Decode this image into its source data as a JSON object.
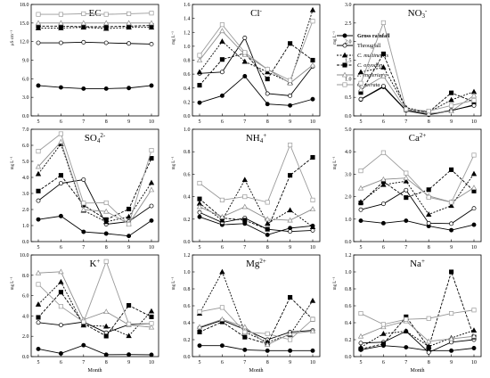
{
  "styles": [
    {
      "key": "gr",
      "color": "#000000",
      "dash": "",
      "marker": "circle",
      "fill": "#000000",
      "width": 0.9
    },
    {
      "key": "tf",
      "color": "#000000",
      "dash": "",
      "marker": "circle",
      "fill": "#ffffff",
      "width": 0.9
    },
    {
      "key": "cm",
      "color": "#000000",
      "dash": "2,1.5",
      "marker": "triangle",
      "fill": "#000000",
      "width": 0.9
    },
    {
      "key": "co",
      "color": "#000000",
      "dash": "3,1.5",
      "marker": "square",
      "fill": "#000000",
      "width": 0.9
    },
    {
      "key": "fe",
      "color": "#8c8c8c",
      "dash": "",
      "marker": "triangle",
      "fill": "#ffffff",
      "width": 0.9
    },
    {
      "key": "qs",
      "color": "#9a9a9a",
      "dash": "",
      "marker": "square",
      "fill": "#ffffff",
      "width": 0.9
    }
  ],
  "legend": [
    "Gross rainfall",
    "Througfall",
    "C. multinervis",
    "C. oxyodon",
    "F. engleriana",
    "Q. serrata"
  ],
  "chart_data": [
    {
      "type": "line",
      "title": "EC",
      "sup": "",
      "ylabel": "μS cm⁻¹",
      "ylim": [
        0,
        18
      ],
      "yticks": [
        "0.0",
        "3.0",
        "6.0",
        "9.0",
        "12.0",
        "15.0",
        "18.0"
      ],
      "xlabel": "",
      "x": [
        5,
        6,
        7,
        8,
        9,
        10
      ],
      "series": [
        {
          "values": [
            4.9,
            4.6,
            4.4,
            4.4,
            4.5,
            4.9
          ]
        },
        {
          "values": [
            11.8,
            11.8,
            11.9,
            11.8,
            11.7,
            11.6
          ]
        },
        {
          "values": [
            14.2,
            14.2,
            14.3,
            14.1,
            14.3,
            14.3
          ]
        },
        {
          "values": [
            14.5,
            14.5,
            14.4,
            14.4,
            14.5,
            14.6
          ]
        },
        {
          "values": [
            15.0,
            15.0,
            15.0,
            15.0,
            15.0,
            15.0
          ]
        },
        {
          "values": [
            16.4,
            16.4,
            16.5,
            16.4,
            16.5,
            16.6
          ]
        }
      ]
    },
    {
      "type": "line",
      "title": "Cl",
      "sup": "-",
      "ylabel": "mg L⁻¹",
      "ylim": [
        0,
        1.6
      ],
      "yticks": [
        "0.0",
        "0.2",
        "0.4",
        "0.6",
        "0.8",
        "1.0",
        "1.2",
        "1.4",
        "1.6"
      ],
      "xlabel": "",
      "x": [
        5,
        6,
        7,
        8,
        9,
        10
      ],
      "series": [
        {
          "values": [
            0.19,
            0.29,
            0.57,
            0.17,
            0.15,
            0.24
          ]
        },
        {
          "values": [
            0.61,
            0.63,
            1.12,
            0.32,
            0.29,
            0.71
          ]
        },
        {
          "values": [
            0.63,
            1.07,
            0.78,
            0.63,
            0.48,
            1.52
          ]
        },
        {
          "values": [
            0.44,
            0.81,
            0.9,
            0.53,
            1.04,
            0.8
          ]
        },
        {
          "values": [
            0.8,
            1.22,
            0.88,
            0.67,
            0.47,
            0.73
          ]
        },
        {
          "values": [
            0.87,
            1.31,
            0.91,
            0.67,
            0.51,
            1.36
          ]
        }
      ]
    },
    {
      "type": "line",
      "title": "NO",
      "sup": "3",
      "sub": "-",
      "ylabel": "mg L⁻¹",
      "ylim": [
        0,
        3.0
      ],
      "yticks": [
        "0.0",
        "0.5",
        "1.0",
        "1.5",
        "2.0",
        "2.5",
        "3.0"
      ],
      "xlabel": "",
      "x": [
        5,
        6,
        7,
        8,
        9,
        10
      ],
      "series": [
        {
          "values": [
            0.44,
            0.78,
            0.14,
            0.03,
            0.14,
            0.3
          ]
        },
        {
          "values": [
            0.45,
            0.8,
            0.15,
            0.04,
            0.15,
            0.28
          ]
        },
        {
          "values": [
            1.18,
            1.31,
            0.22,
            0.1,
            0.43,
            0.65
          ]
        },
        {
          "values": [
            0.63,
            1.67,
            0.17,
            0.1,
            0.62,
            0.38
          ]
        },
        {
          "values": [
            0.71,
            1.07,
            0.16,
            0.06,
            0.13,
            0.55
          ]
        },
        {
          "values": [
            0.88,
            2.51,
            0.18,
            0.13,
            0.28,
            0.42
          ]
        }
      ]
    },
    {
      "type": "line",
      "title": "SO",
      "sup": "4",
      "sub": "2-",
      "ylabel": "mg L⁻¹",
      "ylim": [
        0,
        7.0
      ],
      "yticks": [
        "0.0",
        "1.0",
        "2.0",
        "3.0",
        "4.0",
        "5.0",
        "6.0",
        "7.0"
      ],
      "xlabel": "",
      "x": [
        5,
        6,
        7,
        8,
        9,
        10
      ],
      "series": [
        {
          "values": [
            1.38,
            1.59,
            0.61,
            0.5,
            0.35,
            1.31
          ]
        },
        {
          "values": [
            2.55,
            3.63,
            3.86,
            1.08,
            1.25,
            2.22
          ]
        },
        {
          "values": [
            4.22,
            6.08,
            1.94,
            1.23,
            1.55,
            3.67
          ]
        },
        {
          "values": [
            3.15,
            4.13,
            2.28,
            1.37,
            2.03,
            5.19
          ]
        },
        {
          "values": [
            4.67,
            6.22,
            1.99,
            1.88,
            1.11,
            3.23
          ]
        },
        {
          "values": [
            5.63,
            6.72,
            2.4,
            2.42,
            1.08,
            5.69
          ]
        }
      ]
    },
    {
      "type": "line",
      "title": "NH",
      "sup": "4",
      "sub": "+",
      "ylabel": "mg L⁻¹",
      "ylim": [
        0,
        1.0
      ],
      "yticks": [
        "0.0",
        "0.2",
        "0.4",
        "0.6",
        "0.8",
        "1.0"
      ],
      "xlabel": "",
      "x": [
        5,
        6,
        7,
        8,
        9,
        10
      ],
      "series": [
        {
          "values": [
            0.22,
            0.15,
            0.16,
            0.06,
            0.12,
            0.14
          ]
        },
        {
          "values": [
            0.26,
            0.17,
            0.21,
            0.11,
            0.09,
            0.1
          ]
        },
        {
          "values": [
            0.34,
            0.19,
            0.55,
            0.16,
            0.28,
            0.13
          ]
        },
        {
          "values": [
            0.38,
            0.21,
            0.19,
            0.11,
            0.59,
            0.75
          ]
        },
        {
          "values": [
            0.31,
            0.22,
            0.31,
            0.2,
            0.19,
            0.29
          ]
        },
        {
          "values": [
            0.52,
            0.37,
            0.4,
            0.35,
            0.86,
            0.37
          ]
        }
      ]
    },
    {
      "type": "line",
      "title": "Ca",
      "sup": "2+",
      "ylabel": "mg L⁻¹",
      "ylim": [
        0,
        5.0
      ],
      "yticks": [
        "0.0",
        "1.0",
        "2.0",
        "3.0",
        "4.0",
        "5.0"
      ],
      "xlabel": "",
      "x": [
        5,
        6,
        7,
        8,
        9,
        10
      ],
      "series": [
        {
          "values": [
            0.93,
            0.82,
            0.93,
            0.69,
            0.51,
            0.75
          ]
        },
        {
          "values": [
            1.42,
            1.68,
            2.29,
            0.82,
            0.8,
            1.48
          ]
        },
        {
          "values": [
            1.76,
            2.53,
            2.69,
            1.21,
            1.6,
            3.02
          ]
        },
        {
          "values": [
            1.72,
            2.67,
            1.96,
            2.31,
            3.2,
            2.25
          ]
        },
        {
          "values": [
            2.38,
            2.77,
            2.83,
            2.03,
            1.76,
            2.4
          ]
        },
        {
          "values": [
            3.15,
            3.96,
            3.05,
            1.97,
            1.75,
            3.85
          ]
        }
      ]
    },
    {
      "type": "line",
      "title": "K",
      "sup": "+",
      "ylabel": "mg L⁻¹",
      "ylim": [
        0,
        10.0
      ],
      "yticks": [
        "0.0",
        "2.0",
        "4.0",
        "6.0",
        "8.0",
        "10.0"
      ],
      "xlabel": "Month",
      "x": [
        5,
        6,
        7,
        8,
        9,
        10
      ],
      "series": [
        {
          "values": [
            0.75,
            0.31,
            1.12,
            0.19,
            0.2,
            0.18
          ]
        },
        {
          "values": [
            3.35,
            3.1,
            3.41,
            2.35,
            3.15,
            3.25
          ]
        },
        {
          "values": [
            5.14,
            7.35,
            3.09,
            2.98,
            2.04,
            4.47
          ]
        },
        {
          "values": [
            3.86,
            6.34,
            3.25,
            2.02,
            5.04,
            3.91
          ]
        },
        {
          "values": [
            8.23,
            8.35,
            3.63,
            4.42,
            3.12,
            2.89
          ]
        },
        {
          "values": [
            7.11,
            4.94,
            3.41,
            9.36,
            3.21,
            3.26
          ]
        }
      ]
    },
    {
      "type": "line",
      "title": "Mg",
      "sup": "2+",
      "ylabel": "mg L⁻¹",
      "ylim": [
        0,
        1.2
      ],
      "yticks": [
        "0.0",
        "0.2",
        "0.4",
        "0.6",
        "0.8",
        "1.0",
        "1.2"
      ],
      "xlabel": "Month",
      "x": [
        5,
        6,
        7,
        8,
        9,
        10
      ],
      "series": [
        {
          "values": [
            0.13,
            0.13,
            0.08,
            0.07,
            0.07,
            0.07
          ]
        },
        {
          "values": [
            0.34,
            0.43,
            0.32,
            0.2,
            0.29,
            0.31
          ]
        },
        {
          "values": [
            0.51,
            1.0,
            0.29,
            0.17,
            0.26,
            0.66
          ]
        },
        {
          "values": [
            0.29,
            0.41,
            0.23,
            0.15,
            0.7,
            0.44
          ]
        },
        {
          "values": [
            0.35,
            0.44,
            0.35,
            0.14,
            0.27,
            0.3
          ]
        },
        {
          "values": [
            0.53,
            0.58,
            0.29,
            0.27,
            0.2,
            0.44
          ]
        }
      ]
    },
    {
      "type": "line",
      "title": "Na",
      "sup": "+",
      "ylabel": "mg L⁻¹",
      "ylim": [
        0,
        1.2
      ],
      "yticks": [
        "0.0",
        "0.2",
        "0.4",
        "0.6",
        "0.8",
        "1.0",
        "1.2"
      ],
      "xlabel": "Month",
      "x": [
        5,
        6,
        7,
        8,
        9,
        10
      ],
      "series": [
        {
          "values": [
            0.08,
            0.13,
            0.11,
            0.07,
            0.07,
            0.1
          ]
        },
        {
          "values": [
            0.16,
            0.17,
            0.3,
            0.05,
            0.17,
            0.2
          ]
        },
        {
          "values": [
            0.11,
            0.27,
            0.3,
            0.12,
            0.22,
            0.31
          ]
        },
        {
          "values": [
            0.09,
            0.15,
            0.47,
            0.11,
            1.0,
            0.23
          ]
        },
        {
          "values": [
            0.24,
            0.35,
            0.42,
            0.18,
            0.21,
            0.24
          ]
        },
        {
          "values": [
            0.51,
            0.38,
            0.44,
            0.45,
            0.51,
            0.55
          ]
        }
      ]
    }
  ]
}
